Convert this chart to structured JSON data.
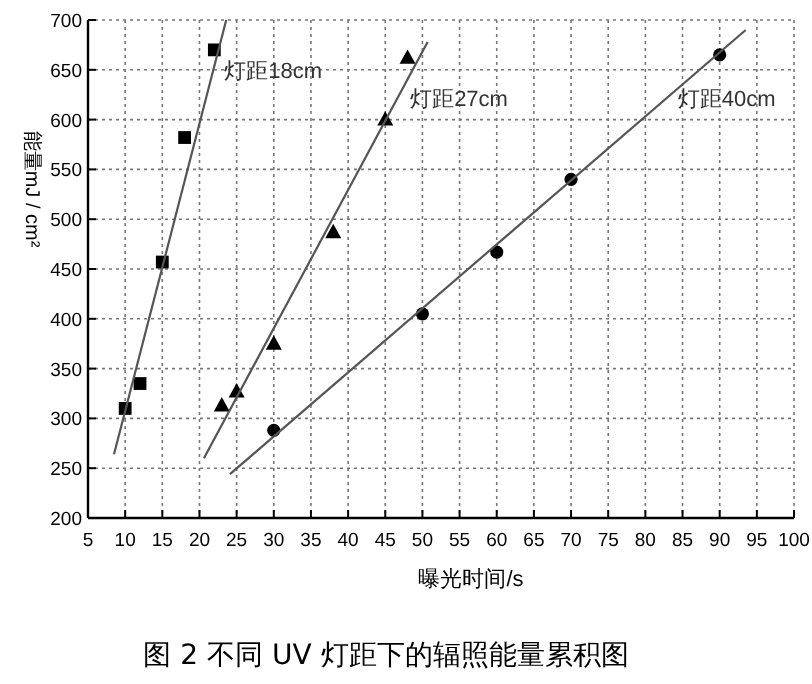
{
  "chart_data": {
    "type": "scatter",
    "title": "图 2 不同 UV 灯距下的辐照能量累积图",
    "xlabel": "曝光时间/s",
    "ylabel": "能量mJ / cm²",
    "xlim": [
      5,
      100
    ],
    "xticks": [
      5,
      10,
      15,
      20,
      25,
      30,
      35,
      40,
      45,
      50,
      55,
      60,
      65,
      70,
      75,
      80,
      85,
      90,
      95,
      100
    ],
    "ylim": [
      200,
      700
    ],
    "yticks": [
      200,
      250,
      300,
      350,
      400,
      450,
      500,
      550,
      600,
      650,
      700
    ],
    "grid": true,
    "series": [
      {
        "marker": "square",
        "color": "#000000",
        "x": [
          10,
          12,
          15,
          18,
          22
        ],
        "values": [
          310,
          335,
          457,
          582,
          670
        ]
      },
      {
        "marker": "triangle",
        "color": "#000000",
        "x": [
          23,
          25,
          30,
          38,
          45,
          48
        ],
        "values": [
          313,
          327,
          375,
          487,
          600,
          662
        ]
      },
      {
        "marker": "circle",
        "color": "#000000",
        "x": [
          30,
          50,
          60,
          70,
          90
        ],
        "values": [
          288,
          405,
          467,
          540,
          665
        ]
      },
      {
        "type": "line",
        "color": "#555555",
        "x": [
          8.5,
          23.6
        ],
        "values": [
          264,
          700
        ]
      },
      {
        "type": "line",
        "color": "#555555",
        "x": [
          20.6,
          50.7
        ],
        "values": [
          260,
          678
        ]
      },
      {
        "type": "line",
        "color": "#555555",
        "x": [
          24.1,
          93.5
        ],
        "values": [
          244,
          690
        ]
      }
    ],
    "annotations": [
      {
        "text": "灯距18cm",
        "x": 22,
        "y": 650
      },
      {
        "text": "灯距27cm",
        "x": 47,
        "y": 622
      },
      {
        "text": "灯距40cm",
        "x": 83,
        "y": 622
      }
    ]
  }
}
